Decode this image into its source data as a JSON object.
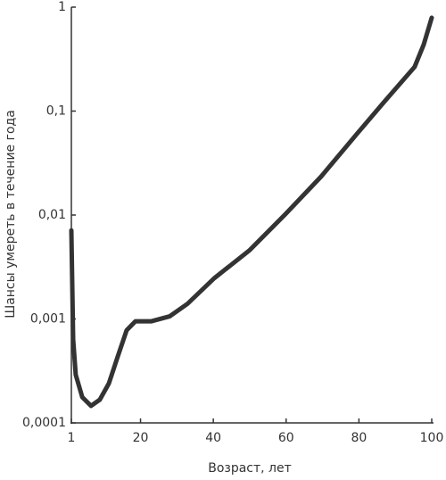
{
  "chart_data": {
    "type": "line",
    "xlabel": "Возраст, лет",
    "ylabel": "Шансы умереть в течение года",
    "x": [
      1,
      1.5,
      2.2,
      4,
      6.4,
      8.8,
      11.3,
      13.7,
      16.2,
      18.6,
      23,
      28,
      32.9,
      40.2,
      50,
      59.8,
      69.6,
      79.4,
      86.8,
      95.3,
      97.8,
      100
    ],
    "series": [
      {
        "name": "Шансы умереть",
        "color": "#333333",
        "values": [
          0.0071,
          0.00064,
          0.00029,
          0.000177,
          0.000146,
          0.000167,
          0.000239,
          0.00043,
          0.00078,
          0.00095,
          0.00095,
          0.00106,
          0.0014,
          0.00246,
          0.0046,
          0.0102,
          0.0234,
          0.06,
          0.121,
          0.266,
          0.436,
          0.79
        ]
      }
    ],
    "xlim": [
      1,
      100
    ],
    "xticks": [
      1,
      20,
      40,
      60,
      80,
      100
    ],
    "ylim": [
      0.0001,
      1
    ],
    "yticks": [
      {
        "value": 0.0001,
        "label": "0,0001"
      },
      {
        "value": 0.001,
        "label": "0,001"
      },
      {
        "value": 0.01,
        "label": "0,01"
      },
      {
        "value": 0.1,
        "label": "0,1"
      },
      1
    ],
    "log_y": true
  }
}
